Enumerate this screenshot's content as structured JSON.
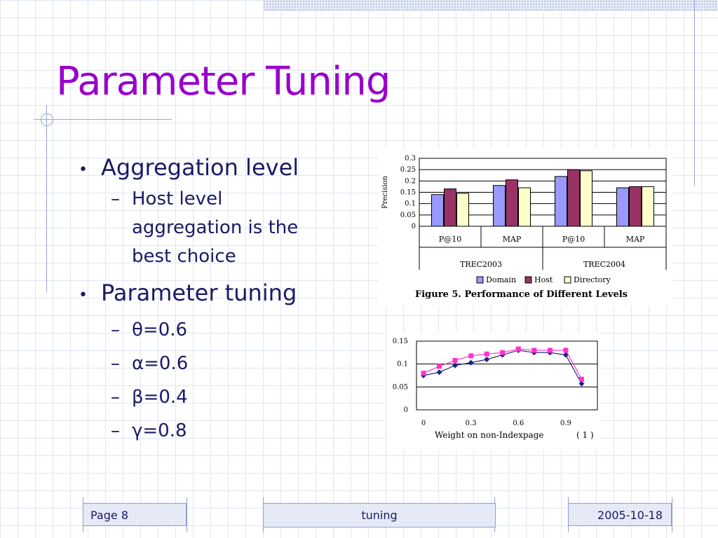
{
  "slide": {
    "title": "Parameter Tuning",
    "bullets": [
      {
        "text": "Aggregation level",
        "sub": [
          "Host level aggregation is the best choice"
        ]
      },
      {
        "text": "Parameter tuning",
        "sub": [
          "θ=0.6",
          "α=0.6",
          "β=0.4",
          "γ=0.8"
        ]
      }
    ]
  },
  "footer": {
    "page": "Page 8",
    "topic": "tuning",
    "date": "2005-10-18"
  },
  "colors": {
    "title": "#9900cc",
    "text": "#1a1a66",
    "domain": "#9999ff",
    "host": "#993366",
    "directory": "#ffffcc"
  },
  "chart_data": [
    {
      "type": "bar",
      "title": "Figure 5. Performance of Different Levels",
      "ylabel": "Precision",
      "ylim": [
        0,
        0.3
      ],
      "yticks": [
        "0.3",
        "0.25",
        "0.2",
        "0.15",
        "0.1",
        "0.05",
        "0"
      ],
      "categories": [
        "P@10",
        "MAP",
        "P@10",
        "MAP"
      ],
      "groups": [
        "TREC2003",
        "TREC2004"
      ],
      "series": [
        {
          "name": "Domain",
          "color": "#9999ff",
          "values": [
            0.14,
            0.18,
            0.22,
            0.17
          ]
        },
        {
          "name": "Host",
          "color": "#993366",
          "values": [
            0.165,
            0.205,
            0.25,
            0.175
          ]
        },
        {
          "name": "Directory",
          "color": "#ffffcc",
          "values": [
            0.145,
            0.17,
            0.245,
            0.175
          ]
        }
      ],
      "grid": true,
      "legend": "bottom"
    },
    {
      "type": "line",
      "xlabel": "Weight on non-Indexpage",
      "caption": "( 1 )",
      "ylim": [
        0,
        0.15
      ],
      "yticks": [
        "0.15",
        "0.1",
        "0.05",
        "0"
      ],
      "xticks": [
        "0",
        "0.3",
        "0.6",
        "0.9"
      ],
      "x": [
        0,
        0.1,
        0.2,
        0.3,
        0.4,
        0.5,
        0.6,
        0.7,
        0.8,
        0.9,
        1.0
      ],
      "series": [
        {
          "marker": "diamond",
          "color": "#1a237e",
          "values": [
            0.075,
            0.082,
            0.097,
            0.103,
            0.11,
            0.12,
            0.13,
            0.125,
            0.125,
            0.12,
            0.057
          ]
        },
        {
          "marker": "square",
          "color": "#ff33cc",
          "values": [
            0.08,
            0.095,
            0.108,
            0.118,
            0.122,
            0.125,
            0.133,
            0.13,
            0.13,
            0.13,
            0.067
          ]
        }
      ],
      "grid": true
    }
  ]
}
